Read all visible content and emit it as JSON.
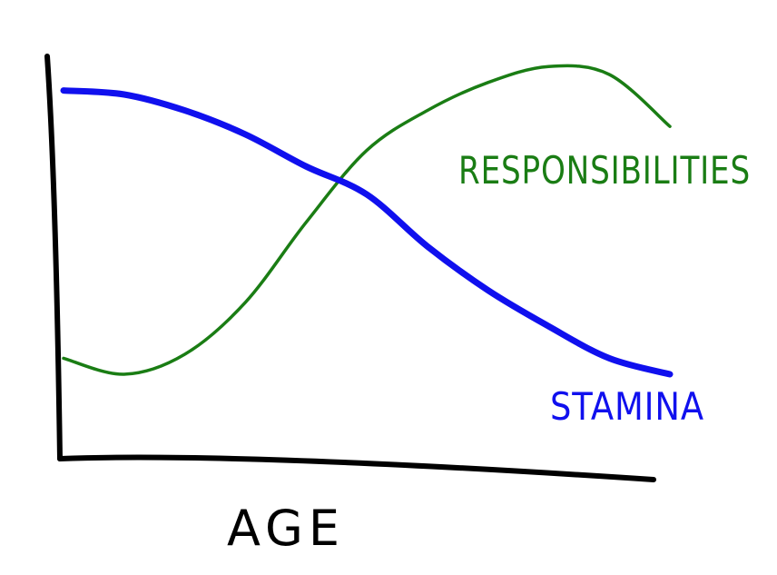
{
  "chart_data": {
    "type": "line",
    "title": "",
    "xlabel": "AGE",
    "ylabel": "",
    "grid": false,
    "legend": "none",
    "axes_ticks": false,
    "x": [
      0,
      10,
      20,
      30,
      40,
      50,
      60,
      70,
      80,
      90,
      100
    ],
    "xlim": [
      0,
      100
    ],
    "ylim": [
      0,
      100
    ],
    "series": [
      {
        "name": "RESPONSIBILITIES",
        "color": "#1a7d14",
        "values": [
          24,
          20,
          25,
          38,
          58,
          76,
          86,
          93,
          97,
          95,
          82
        ]
      },
      {
        "name": "STAMINA",
        "color": "#1010ee",
        "values": [
          91,
          90,
          86,
          80,
          72,
          65,
          52,
          41,
          32,
          24,
          20
        ]
      }
    ]
  }
}
